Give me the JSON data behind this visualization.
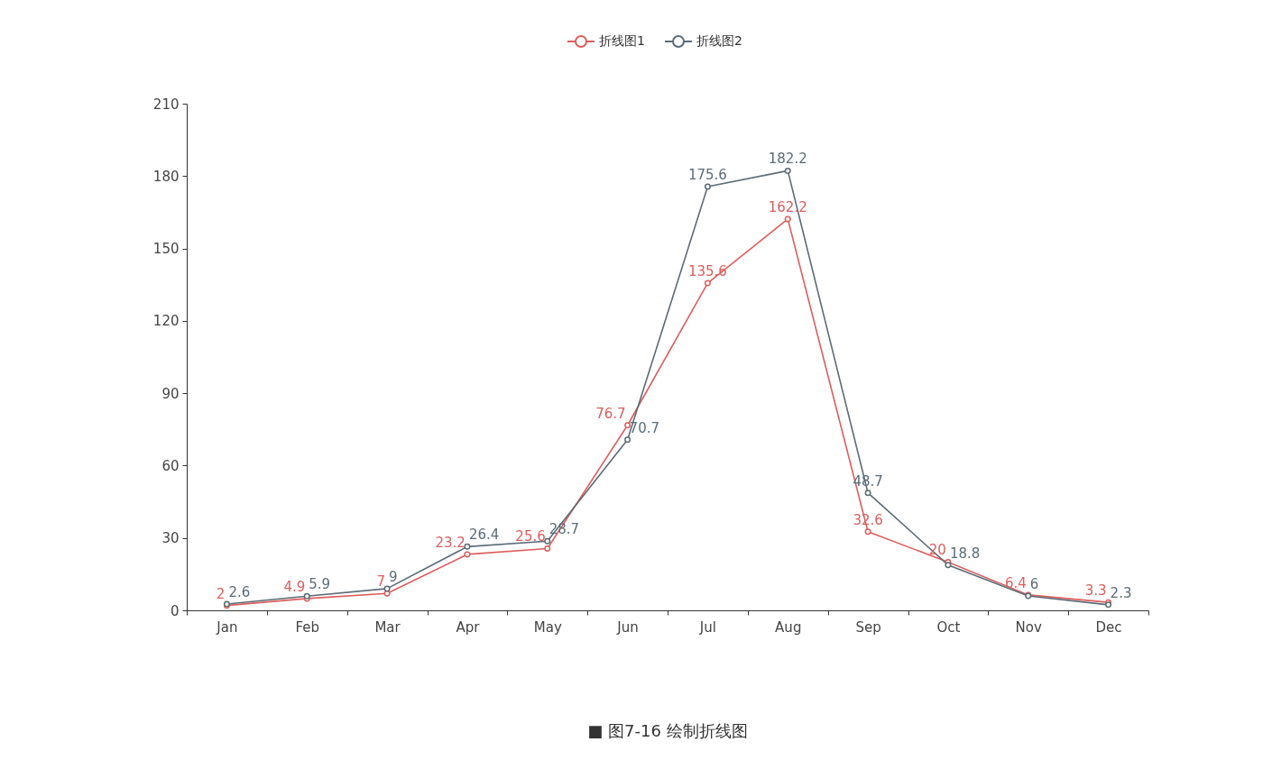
{
  "chart_data": {
    "type": "line",
    "categories": [
      "Jan",
      "Feb",
      "Mar",
      "Apr",
      "May",
      "Jun",
      "Jul",
      "Aug",
      "Sep",
      "Oct",
      "Nov",
      "Dec"
    ],
    "series": [
      {
        "name": "折线图1",
        "color": "#dd5d5d",
        "values": [
          2,
          4.9,
          7,
          23.2,
          25.6,
          76.7,
          135.6,
          162.2,
          32.6,
          20,
          6.4,
          3.3
        ]
      },
      {
        "name": "折线图2",
        "color": "#5b6b76",
        "values": [
          2.6,
          5.9,
          9,
          26.4,
          28.7,
          70.7,
          175.6,
          182.2,
          48.7,
          18.8,
          6,
          2.3
        ]
      }
    ],
    "ylim": [
      0,
      210
    ],
    "yticks": [
      0,
      30,
      60,
      90,
      120,
      150,
      180,
      210
    ],
    "grid": false,
    "legend": "top",
    "marker": "circle",
    "line_style": "solid",
    "data_labels": true,
    "annotations": [
      "■ 图7-16  绘制折线图"
    ]
  }
}
